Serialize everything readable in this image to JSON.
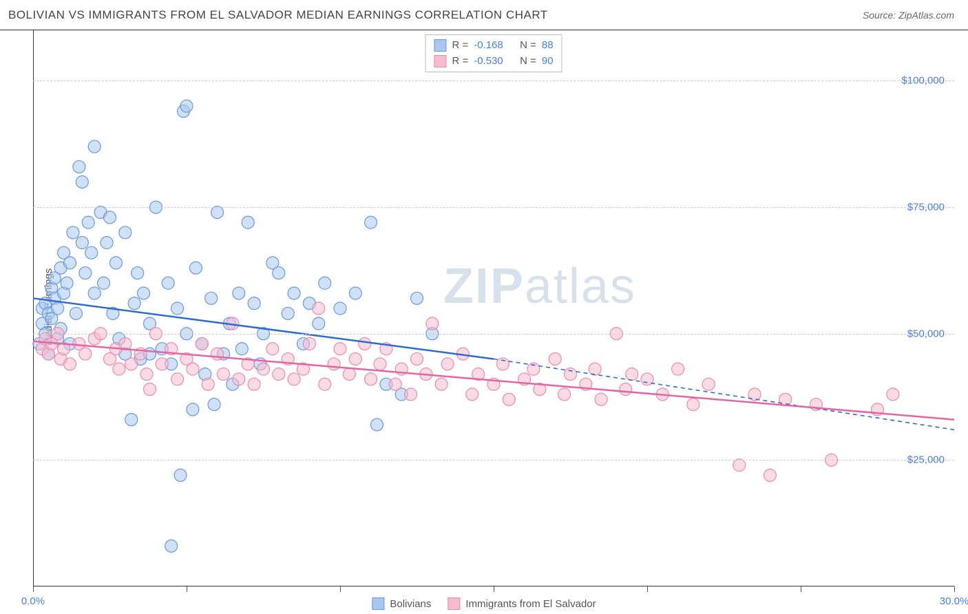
{
  "header": {
    "title": "BOLIVIAN VS IMMIGRANTS FROM EL SALVADOR MEDIAN EARNINGS CORRELATION CHART",
    "source_prefix": "Source: ",
    "source_name": "ZipAtlas.com"
  },
  "chart": {
    "type": "scatter",
    "ylabel": "Median Earnings",
    "xlim": [
      0,
      30
    ],
    "ylim": [
      0,
      110000
    ],
    "x_ticks_pct": [
      0,
      5,
      10,
      15,
      20,
      25,
      30
    ],
    "x_tick_labels_shown": {
      "left": "0.0%",
      "right": "30.0%"
    },
    "y_gridlines": [
      25000,
      50000,
      75000,
      100000
    ],
    "y_tick_labels": [
      "$25,000",
      "$50,000",
      "$75,000",
      "$100,000"
    ],
    "background_color": "#ffffff",
    "grid_color": "#cccccc",
    "axis_color": "#333333",
    "tick_label_color": "#4a7fd8",
    "watermark_text": "ZIPatlas",
    "series": [
      {
        "key": "bolivians",
        "label": "Bolivians",
        "fill": "#a9c7ec",
        "stroke": "#6699dd",
        "line_color": "#2e6bd1",
        "fill_opacity": 0.55,
        "marker_radius": 9,
        "R": "-0.168",
        "N": "88",
        "trend": {
          "x1": 0,
          "y1": 57000,
          "x2": 15,
          "y2": 45000,
          "dash_x2": 30,
          "dash_y2": 31000
        },
        "points": [
          [
            0.2,
            48000
          ],
          [
            0.3,
            52000
          ],
          [
            0.3,
            55000
          ],
          [
            0.4,
            50000
          ],
          [
            0.4,
            56000
          ],
          [
            0.5,
            54000
          ],
          [
            0.5,
            46000
          ],
          [
            0.6,
            59000
          ],
          [
            0.6,
            53000
          ],
          [
            0.7,
            57000
          ],
          [
            0.7,
            61000
          ],
          [
            0.8,
            55000
          ],
          [
            0.8,
            49000
          ],
          [
            0.9,
            63000
          ],
          [
            0.9,
            51000
          ],
          [
            1.0,
            58000
          ],
          [
            1.0,
            66000
          ],
          [
            1.1,
            60000
          ],
          [
            1.2,
            48000
          ],
          [
            1.2,
            64000
          ],
          [
            1.3,
            70000
          ],
          [
            1.4,
            54000
          ],
          [
            1.5,
            83000
          ],
          [
            1.6,
            80000
          ],
          [
            1.6,
            68000
          ],
          [
            1.7,
            62000
          ],
          [
            1.8,
            72000
          ],
          [
            1.9,
            66000
          ],
          [
            2.0,
            58000
          ],
          [
            2.0,
            87000
          ],
          [
            2.2,
            74000
          ],
          [
            2.3,
            60000
          ],
          [
            2.4,
            68000
          ],
          [
            2.5,
            73000
          ],
          [
            2.6,
            54000
          ],
          [
            2.7,
            64000
          ],
          [
            2.8,
            49000
          ],
          [
            3.0,
            46000
          ],
          [
            3.0,
            70000
          ],
          [
            3.2,
            33000
          ],
          [
            3.3,
            56000
          ],
          [
            3.4,
            62000
          ],
          [
            3.5,
            45000
          ],
          [
            3.6,
            58000
          ],
          [
            3.8,
            52000
          ],
          [
            4.0,
            75000
          ],
          [
            4.2,
            47000
          ],
          [
            4.4,
            60000
          ],
          [
            4.5,
            44000
          ],
          [
            4.7,
            55000
          ],
          [
            4.8,
            22000
          ],
          [
            4.9,
            94000
          ],
          [
            5.0,
            95000
          ],
          [
            5.0,
            50000
          ],
          [
            5.2,
            35000
          ],
          [
            5.3,
            63000
          ],
          [
            5.5,
            48000
          ],
          [
            5.6,
            42000
          ],
          [
            5.8,
            57000
          ],
          [
            5.9,
            36000
          ],
          [
            6.0,
            74000
          ],
          [
            6.2,
            46000
          ],
          [
            6.4,
            52000
          ],
          [
            6.5,
            40000
          ],
          [
            6.7,
            58000
          ],
          [
            6.8,
            47000
          ],
          [
            7.0,
            72000
          ],
          [
            7.2,
            56000
          ],
          [
            7.4,
            44000
          ],
          [
            7.5,
            50000
          ],
          [
            7.8,
            64000
          ],
          [
            8.0,
            62000
          ],
          [
            8.3,
            54000
          ],
          [
            8.5,
            58000
          ],
          [
            8.8,
            48000
          ],
          [
            9.0,
            56000
          ],
          [
            9.3,
            52000
          ],
          [
            9.5,
            60000
          ],
          [
            10.0,
            55000
          ],
          [
            10.5,
            58000
          ],
          [
            11.0,
            72000
          ],
          [
            11.5,
            40000
          ],
          [
            12.0,
            38000
          ],
          [
            12.5,
            57000
          ],
          [
            13.0,
            50000
          ],
          [
            4.5,
            8000
          ],
          [
            11.2,
            32000
          ],
          [
            3.8,
            46000
          ]
        ]
      },
      {
        "key": "el_salvador",
        "label": "Immigrants from El Salvador",
        "fill": "#f4bccf",
        "stroke": "#e88aad",
        "line_color": "#e465a0",
        "fill_opacity": 0.55,
        "marker_radius": 9,
        "R": "-0.530",
        "N": "90",
        "trend": {
          "x1": 0,
          "y1": 48500,
          "x2": 30,
          "y2": 33000
        },
        "points": [
          [
            0.3,
            47000
          ],
          [
            0.4,
            49000
          ],
          [
            0.5,
            46000
          ],
          [
            0.6,
            48000
          ],
          [
            0.8,
            50000
          ],
          [
            0.9,
            45000
          ],
          [
            1.0,
            47000
          ],
          [
            1.2,
            44000
          ],
          [
            1.5,
            48000
          ],
          [
            1.7,
            46000
          ],
          [
            2.0,
            49000
          ],
          [
            2.2,
            50000
          ],
          [
            2.5,
            45000
          ],
          [
            2.7,
            47000
          ],
          [
            2.8,
            43000
          ],
          [
            3.0,
            48000
          ],
          [
            3.2,
            44000
          ],
          [
            3.5,
            46000
          ],
          [
            3.7,
            42000
          ],
          [
            3.8,
            39000
          ],
          [
            4.0,
            50000
          ],
          [
            4.2,
            44000
          ],
          [
            4.5,
            47000
          ],
          [
            4.7,
            41000
          ],
          [
            5.0,
            45000
          ],
          [
            5.2,
            43000
          ],
          [
            5.5,
            48000
          ],
          [
            5.7,
            40000
          ],
          [
            6.0,
            46000
          ],
          [
            6.2,
            42000
          ],
          [
            6.5,
            52000
          ],
          [
            6.7,
            41000
          ],
          [
            7.0,
            44000
          ],
          [
            7.2,
            40000
          ],
          [
            7.5,
            43000
          ],
          [
            7.8,
            47000
          ],
          [
            8.0,
            42000
          ],
          [
            8.3,
            45000
          ],
          [
            8.5,
            41000
          ],
          [
            8.8,
            43000
          ],
          [
            9.0,
            48000
          ],
          [
            9.3,
            55000
          ],
          [
            9.5,
            40000
          ],
          [
            9.8,
            44000
          ],
          [
            10.0,
            47000
          ],
          [
            10.3,
            42000
          ],
          [
            10.5,
            45000
          ],
          [
            10.8,
            48000
          ],
          [
            11.0,
            41000
          ],
          [
            11.3,
            44000
          ],
          [
            11.5,
            47000
          ],
          [
            11.8,
            40000
          ],
          [
            12.0,
            43000
          ],
          [
            12.3,
            38000
          ],
          [
            12.5,
            45000
          ],
          [
            12.8,
            42000
          ],
          [
            13.0,
            52000
          ],
          [
            13.3,
            40000
          ],
          [
            13.5,
            44000
          ],
          [
            14.0,
            46000
          ],
          [
            14.3,
            38000
          ],
          [
            14.5,
            42000
          ],
          [
            15.0,
            40000
          ],
          [
            15.3,
            44000
          ],
          [
            15.5,
            37000
          ],
          [
            16.0,
            41000
          ],
          [
            16.3,
            43000
          ],
          [
            16.5,
            39000
          ],
          [
            17.0,
            45000
          ],
          [
            17.3,
            38000
          ],
          [
            17.5,
            42000
          ],
          [
            18.0,
            40000
          ],
          [
            18.3,
            43000
          ],
          [
            18.5,
            37000
          ],
          [
            19.0,
            50000
          ],
          [
            19.3,
            39000
          ],
          [
            19.5,
            42000
          ],
          [
            20.0,
            41000
          ],
          [
            20.5,
            38000
          ],
          [
            21.0,
            43000
          ],
          [
            21.5,
            36000
          ],
          [
            22.0,
            40000
          ],
          [
            23.0,
            24000
          ],
          [
            23.5,
            38000
          ],
          [
            24.0,
            22000
          ],
          [
            24.5,
            37000
          ],
          [
            25.5,
            36000
          ],
          [
            26.0,
            25000
          ],
          [
            27.5,
            35000
          ],
          [
            28.0,
            38000
          ]
        ]
      }
    ],
    "legend_top": {
      "R_label": "R =",
      "N_label": "N ="
    },
    "legend_bottom_labels": [
      "Bolivians",
      "Immigrants from El Salvador"
    ]
  }
}
